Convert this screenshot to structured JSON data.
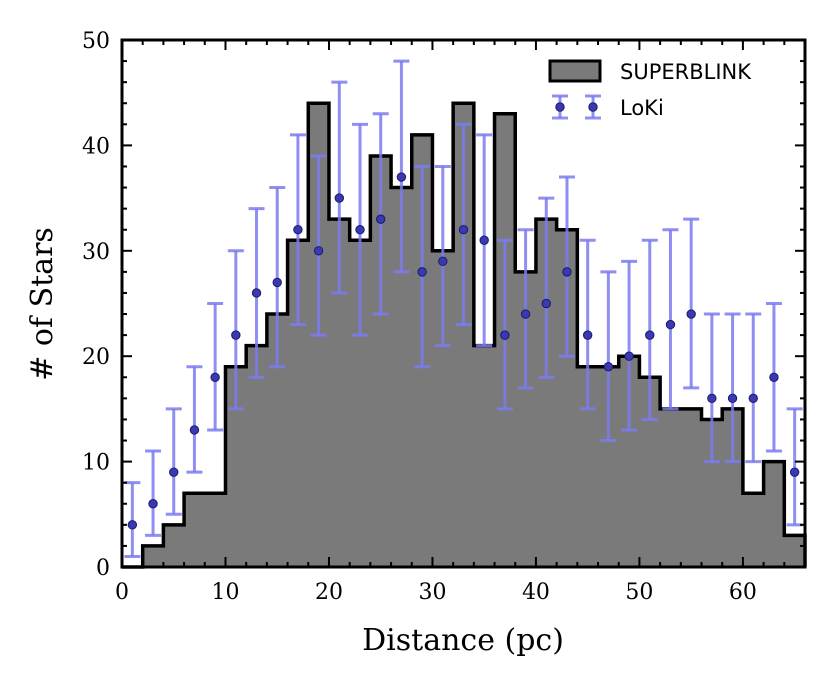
{
  "chart_data": {
    "type": "bar",
    "xlabel": "Distance (pc)",
    "ylabel": "# of Stars",
    "xlim": [
      0,
      66
    ],
    "ylim": [
      0,
      50
    ],
    "xticks": [
      0,
      10,
      20,
      30,
      40,
      50,
      60
    ],
    "yticks": [
      0,
      10,
      20,
      30,
      40,
      50
    ],
    "legend_position": "top-right",
    "colors": {
      "histogram_fill": "#7a7a7a",
      "histogram_edge": "#000000",
      "loki_errorbar": "#7b7bf0",
      "loki_point": "#3a3ab0"
    },
    "series": [
      {
        "name": "SUPERBLINK",
        "style": "step-histogram",
        "bin_edges": [
          0,
          2,
          4,
          6,
          8,
          10,
          12,
          14,
          16,
          18,
          20,
          22,
          24,
          26,
          28,
          30,
          32,
          34,
          36,
          38,
          40,
          42,
          44,
          46,
          48,
          50,
          52,
          54,
          56,
          58,
          60,
          62,
          64,
          66
        ],
        "values": [
          0,
          2,
          4,
          7,
          7,
          19,
          21,
          24,
          31,
          44,
          33,
          31,
          39,
          36,
          41,
          30,
          44,
          21,
          43,
          28,
          33,
          32,
          19,
          19,
          20,
          18,
          15,
          15,
          14,
          15,
          7,
          10,
          3
        ]
      },
      {
        "name": "LoKi",
        "style": "errorbar",
        "x": [
          1,
          3,
          5,
          7,
          9,
          11,
          13,
          15,
          17,
          19,
          21,
          23,
          25,
          27,
          29,
          31,
          33,
          35,
          37,
          39,
          41,
          43,
          45,
          47,
          49,
          51,
          53,
          55,
          57,
          59,
          61,
          63,
          65
        ],
        "values": [
          4,
          6,
          9,
          13,
          18,
          22,
          26,
          27,
          32,
          30,
          35,
          32,
          33,
          37,
          28,
          29,
          32,
          31,
          22,
          24,
          25,
          28,
          22,
          19,
          20,
          22,
          23,
          24,
          16,
          16,
          16,
          18,
          9
        ],
        "err_low": [
          1,
          3,
          5,
          9,
          13,
          15,
          18,
          19,
          23,
          22,
          26,
          22,
          24,
          28,
          19,
          21,
          23,
          21,
          15,
          17,
          18,
          20,
          15,
          12,
          13,
          14,
          15,
          17,
          10,
          10,
          10,
          11,
          4
        ],
        "err_high": [
          8,
          11,
          15,
          19,
          25,
          30,
          34,
          36,
          41,
          39,
          46,
          42,
          43,
          48,
          38,
          38,
          42,
          41,
          31,
          32,
          35,
          37,
          31,
          28,
          29,
          31,
          32,
          33,
          24,
          24,
          24,
          25,
          15
        ]
      }
    ]
  }
}
